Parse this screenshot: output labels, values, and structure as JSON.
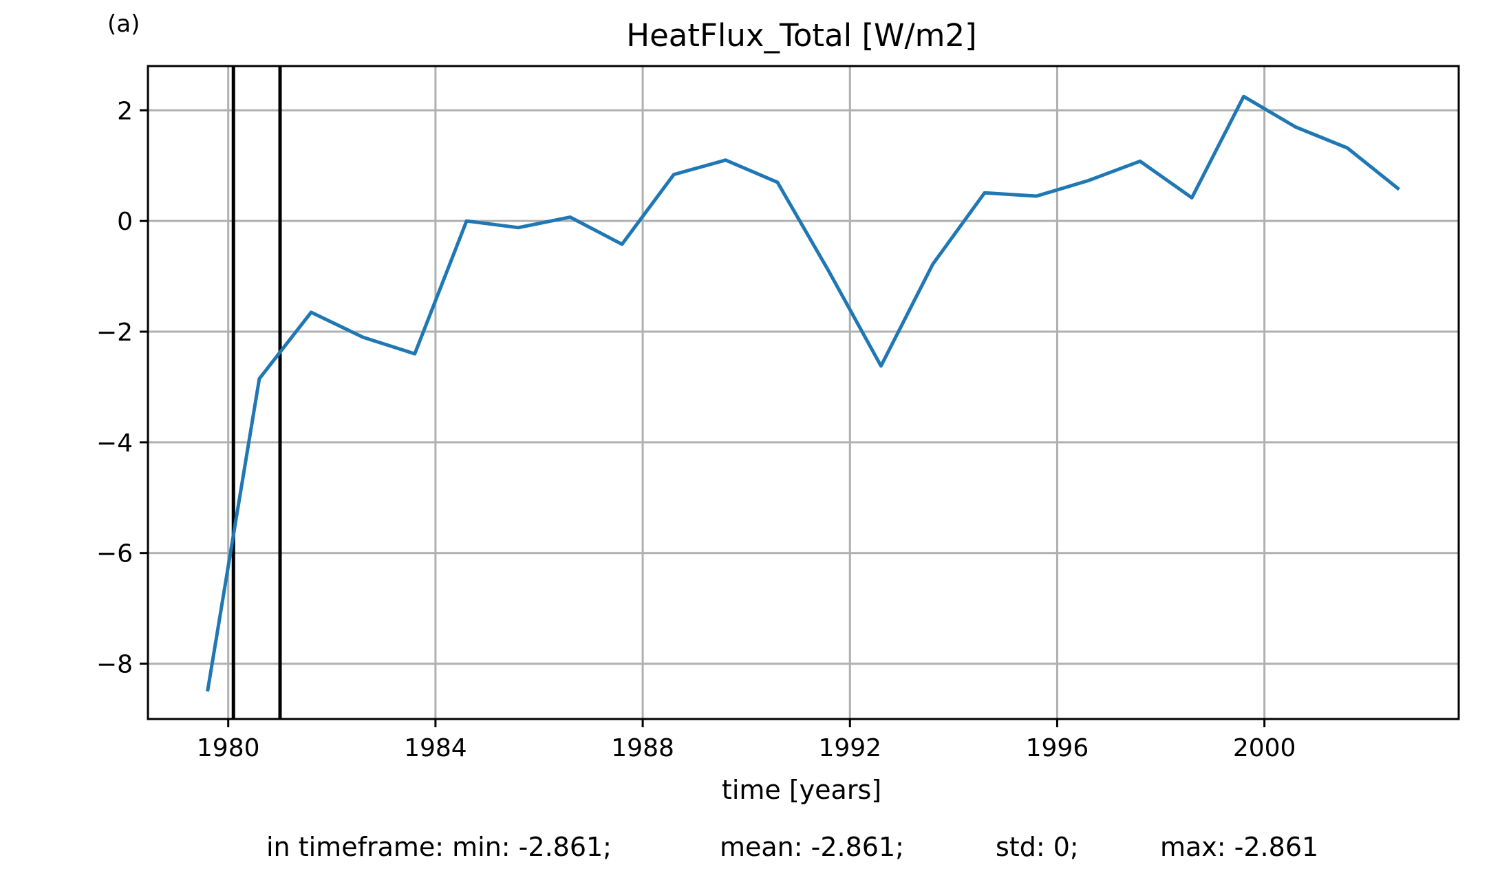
{
  "panel_label": "(a)",
  "footer": {
    "min": "in timeframe: min: -2.861;",
    "mean": "mean: -2.861;",
    "std": "std: 0;",
    "max": "max: -2.861"
  },
  "chart_data": {
    "type": "line",
    "title": "HeatFlux_Total [W/m2]",
    "xlabel": "time [years]",
    "ylabel": "",
    "xlim": [
      1978.45,
      2003.75
    ],
    "ylim": [
      -9.0,
      2.8
    ],
    "xticks": [
      1980,
      1984,
      1988,
      1992,
      1996,
      2000
    ],
    "yticks": [
      -8,
      -6,
      -4,
      -2,
      0,
      2
    ],
    "ytick_labels": [
      "−8",
      "−6",
      "−4",
      "−2",
      "0",
      "2"
    ],
    "grid": true,
    "line_color": "#1f77b4",
    "vlines": [
      1980.1,
      1981.0
    ],
    "vline_color": "#000000",
    "series": [
      {
        "x": [
          1979.6,
          1980.6,
          1981.6,
          1982.6,
          1983.6,
          1984.6,
          1985.6,
          1986.6,
          1987.6,
          1988.6,
          1989.6,
          1990.6,
          1991.6,
          1992.6,
          1993.6,
          1994.6,
          1995.6,
          1996.6,
          1997.6,
          1998.6,
          1999.6,
          2000.6,
          2001.6,
          2002.6
        ],
        "y": [
          -8.5,
          -2.85,
          -1.65,
          -2.1,
          -2.4,
          0.0,
          -0.12,
          0.07,
          -0.42,
          0.84,
          1.1,
          0.7,
          -0.92,
          -2.62,
          -0.78,
          0.51,
          0.45,
          0.73,
          1.08,
          0.42,
          2.25,
          1.7,
          1.32,
          0.57
        ]
      }
    ]
  }
}
